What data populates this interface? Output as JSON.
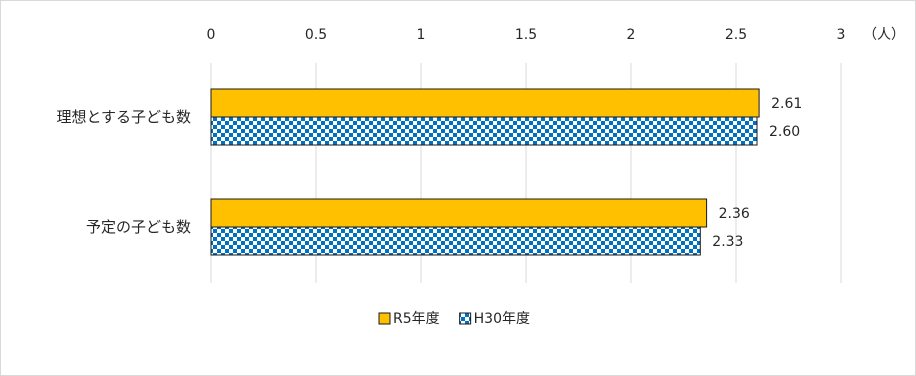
{
  "chart_data": {
    "type": "bar",
    "orientation": "horizontal",
    "categories": [
      "理想とする子ども数",
      "予定の子ども数"
    ],
    "series": [
      {
        "name": "R5年度",
        "values": [
          2.61,
          2.36
        ],
        "color": "#FFC000",
        "pattern": "solid"
      },
      {
        "name": "H30年度",
        "values": [
          2.6,
          2.33
        ],
        "color": "#0070C0",
        "pattern": "checker"
      }
    ],
    "data_labels": [
      [
        "2.61",
        "2.36"
      ],
      [
        "2.60",
        "2.33"
      ]
    ],
    "xlim": [
      0,
      3
    ],
    "x_ticks": [
      0,
      0.5,
      1,
      1.5,
      2,
      2.5,
      3
    ],
    "x_tick_labels": [
      "0",
      "0.5",
      "1",
      "1.5",
      "2",
      "2.5",
      "3"
    ],
    "unit": "（人）",
    "grid": true,
    "axis_position": "top",
    "legend_position": "bottom"
  }
}
